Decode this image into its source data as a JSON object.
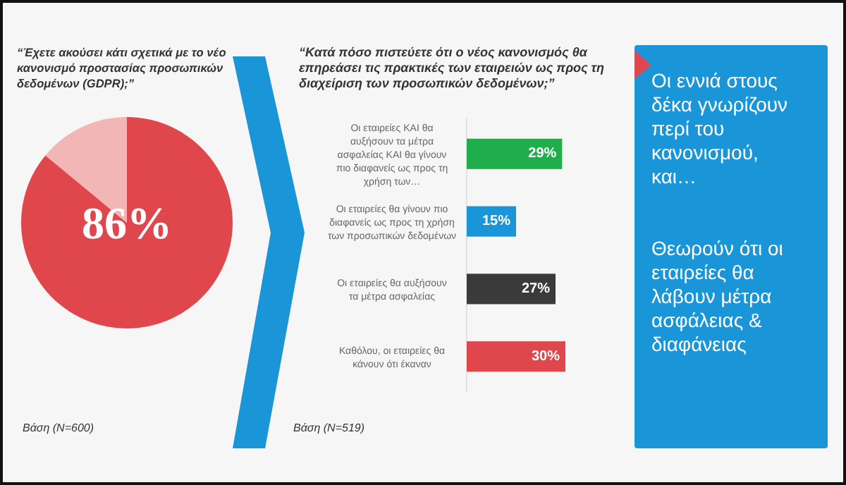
{
  "chart_data": [
    {
      "type": "pie",
      "title": "“Έχετε ακούσει κάτι σχετικά με το νέο κανονισμό προστασίας προσωπικών δεδομένων (GDPR);”",
      "categories": [
        null,
        null
      ],
      "values": [
        86,
        14
      ],
      "colors": [
        "#e0474c",
        "#f2b6b6"
      ],
      "value_labels": [
        "86%",
        null
      ],
      "annotations": [
        "Βάση (N=600)"
      ]
    },
    {
      "type": "bar",
      "orientation": "horizontal",
      "title": "“Κατά πόσο πιστεύετε ότι ο νέος κανονισμός θα επηρεάσει τις πρακτικές των εταιρειών ως προς τη διαχείριση των προσωπικών δεδομένων;”",
      "categories": [
        "Οι εταιρείες ΚΑΙ θα αυξήσουν τα μέτρα ασφαλείας ΚΑΙ θα γίνουν πιο διαφανείς ως προς τη χρήση των…",
        "Οι εταιρείες θα γίνουν πιο διαφανείς ως προς τη χρήση των προσωπικών δεδομένων",
        "Οι εταιρείες θα αυξήσουν τα μέτρα ασφαλείας",
        "Καθόλου, οι εταιρείες θα κάνουν ότι έκαναν"
      ],
      "values": [
        29,
        15,
        27,
        30
      ],
      "colors": [
        "#1fae4b",
        "#1a95d8",
        "#3a3a3a",
        "#e0474c"
      ],
      "value_labels": [
        "29%",
        "15%",
        "27%",
        "30%"
      ],
      "annotations": [
        "Βάση (N=519)"
      ]
    },
    {
      "type": "other",
      "annotations": [
        "Οι εννιά στους δέκα γνωρίζουν περί του κανονισμού, και…",
        "Θεωρούν ότι οι εταιρείες θα λάβουν μέτρα ασφάλειας & διαφάνειας"
      ]
    }
  ]
}
